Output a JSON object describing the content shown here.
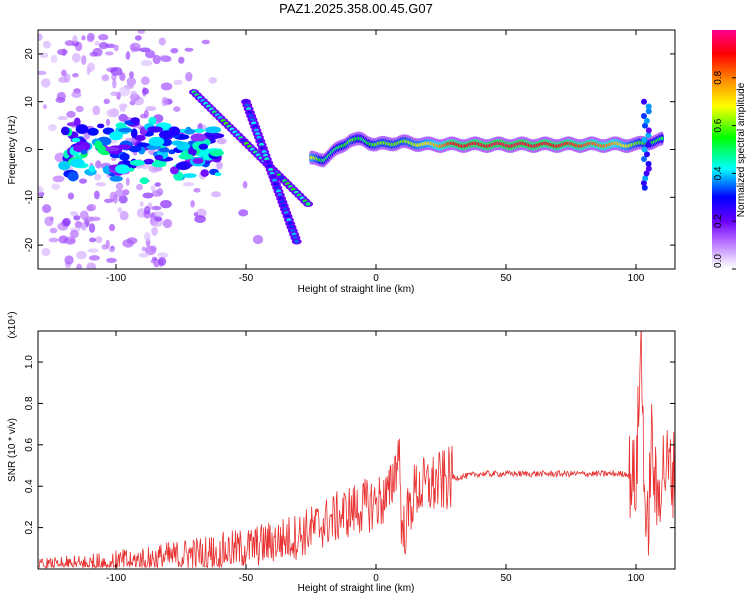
{
  "chart_data": [
    {
      "type": "heatmap",
      "title": "PAZ1.2025.358.00.45.G07",
      "xlabel": "Height of straight line (km)",
      "ylabel": "Frequency (Hz)",
      "xlim": [
        -130,
        115
      ],
      "ylim": [
        -25,
        25
      ],
      "xticks": [
        -100,
        -50,
        0,
        50,
        100
      ],
      "yticks": [
        20,
        10,
        0,
        -10,
        -20
      ],
      "colorbar": {
        "label": "Normalized spectral amplitude",
        "range": [
          0,
          1
        ],
        "ticks": [
          "0.0",
          "0.2",
          "0.4",
          "0.6",
          "0.8"
        ],
        "colors": [
          "#ffffff",
          "#cc99ff",
          "#7a00ff",
          "#0000ff",
          "#00ffff",
          "#00ff00",
          "#ffff00",
          "#ff8000",
          "#ff0000",
          "#ff00a0"
        ]
      },
      "main_ridge": [
        {
          "x": -25,
          "f": -2,
          "amp": 0.7
        },
        {
          "x": -20,
          "f": -2,
          "amp": 0.5
        },
        {
          "x": -15,
          "f": 0,
          "amp": 0.5
        },
        {
          "x": -10,
          "f": 2,
          "amp": 0.6
        },
        {
          "x": -5,
          "f": 2,
          "amp": 0.5
        },
        {
          "x": 0,
          "f": 1,
          "amp": 0.6
        },
        {
          "x": 10,
          "f": 1.5,
          "amp": 0.6
        },
        {
          "x": 20,
          "f": 1,
          "amp": 0.7
        },
        {
          "x": 30,
          "f": 1,
          "amp": 0.9
        },
        {
          "x": 50,
          "f": 1,
          "amp": 0.95
        },
        {
          "x": 70,
          "f": 1,
          "amp": 0.9
        },
        {
          "x": 90,
          "f": 1,
          "amp": 0.8
        },
        {
          "x": 100,
          "f": 1,
          "amp": 0.6
        },
        {
          "x": 110,
          "f": 2,
          "amp": 0.5
        }
      ],
      "branches": [
        {
          "from": [
            -70,
            12
          ],
          "to": [
            -25,
            -12
          ],
          "amp": 0.45
        },
        {
          "from": [
            -50,
            10
          ],
          "to": [
            -30,
            -20
          ],
          "amp": 0.35
        }
      ]
    },
    {
      "type": "line",
      "xlabel": "Height of straight line (km)",
      "ylabel": "SNR (10 * v/v)",
      "yscale_label": "(x10⁴)",
      "xlim": [
        -130,
        115
      ],
      "ylim": [
        0,
        1.15
      ],
      "xticks": [
        -100,
        -50,
        0,
        50,
        100
      ],
      "yticks": [
        "0.2",
        "0.4",
        "0.6",
        "0.8",
        "1.0"
      ],
      "color": "#e83030",
      "series": [
        {
          "name": "SNR",
          "x": [
            -130,
            -110,
            -90,
            -70,
            -50,
            -40,
            -30,
            -20,
            -10,
            0,
            5,
            9,
            10,
            15,
            20,
            30,
            40,
            50,
            60,
            70,
            80,
            90,
            97,
            100,
            102,
            104,
            106,
            108,
            110,
            115
          ],
          "y": [
            0.01,
            0.02,
            0.04,
            0.07,
            0.1,
            0.13,
            0.16,
            0.22,
            0.28,
            0.32,
            0.35,
            0.58,
            0.15,
            0.38,
            0.4,
            0.44,
            0.46,
            0.46,
            0.46,
            0.46,
            0.46,
            0.46,
            0.46,
            0.42,
            1.1,
            0.05,
            0.62,
            0.3,
            0.5,
            0.46
          ]
        }
      ]
    }
  ]
}
